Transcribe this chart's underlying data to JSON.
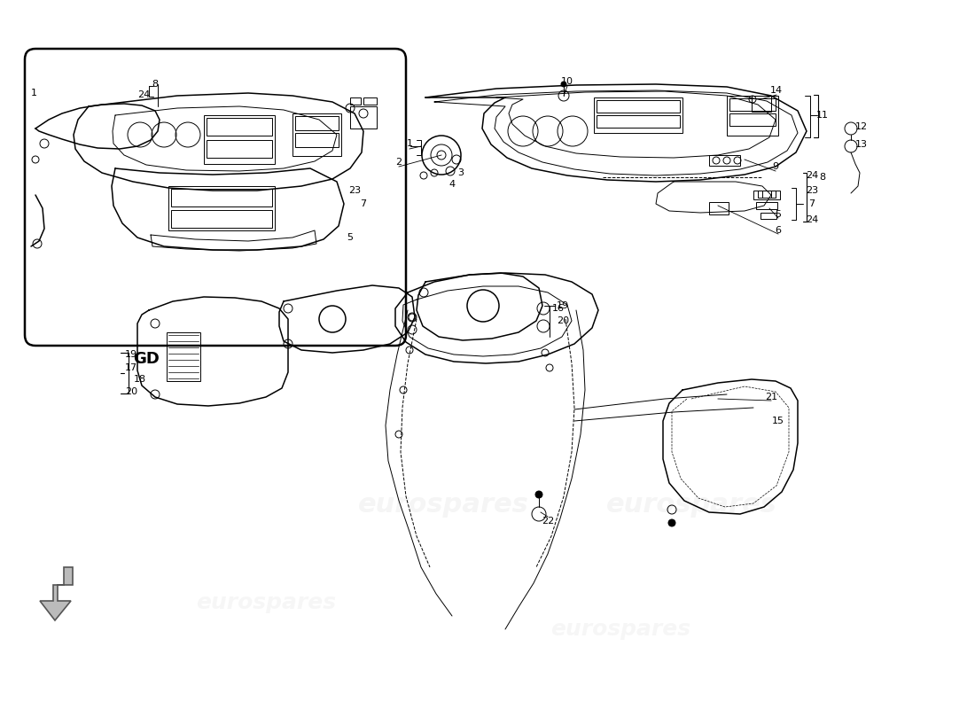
{
  "bg": "#ffffff",
  "lc": "#000000",
  "wm_color": "#c8c8c8",
  "wm_text": "eurospares",
  "fig_w": 11.0,
  "fig_h": 8.0,
  "dpi": 100
}
